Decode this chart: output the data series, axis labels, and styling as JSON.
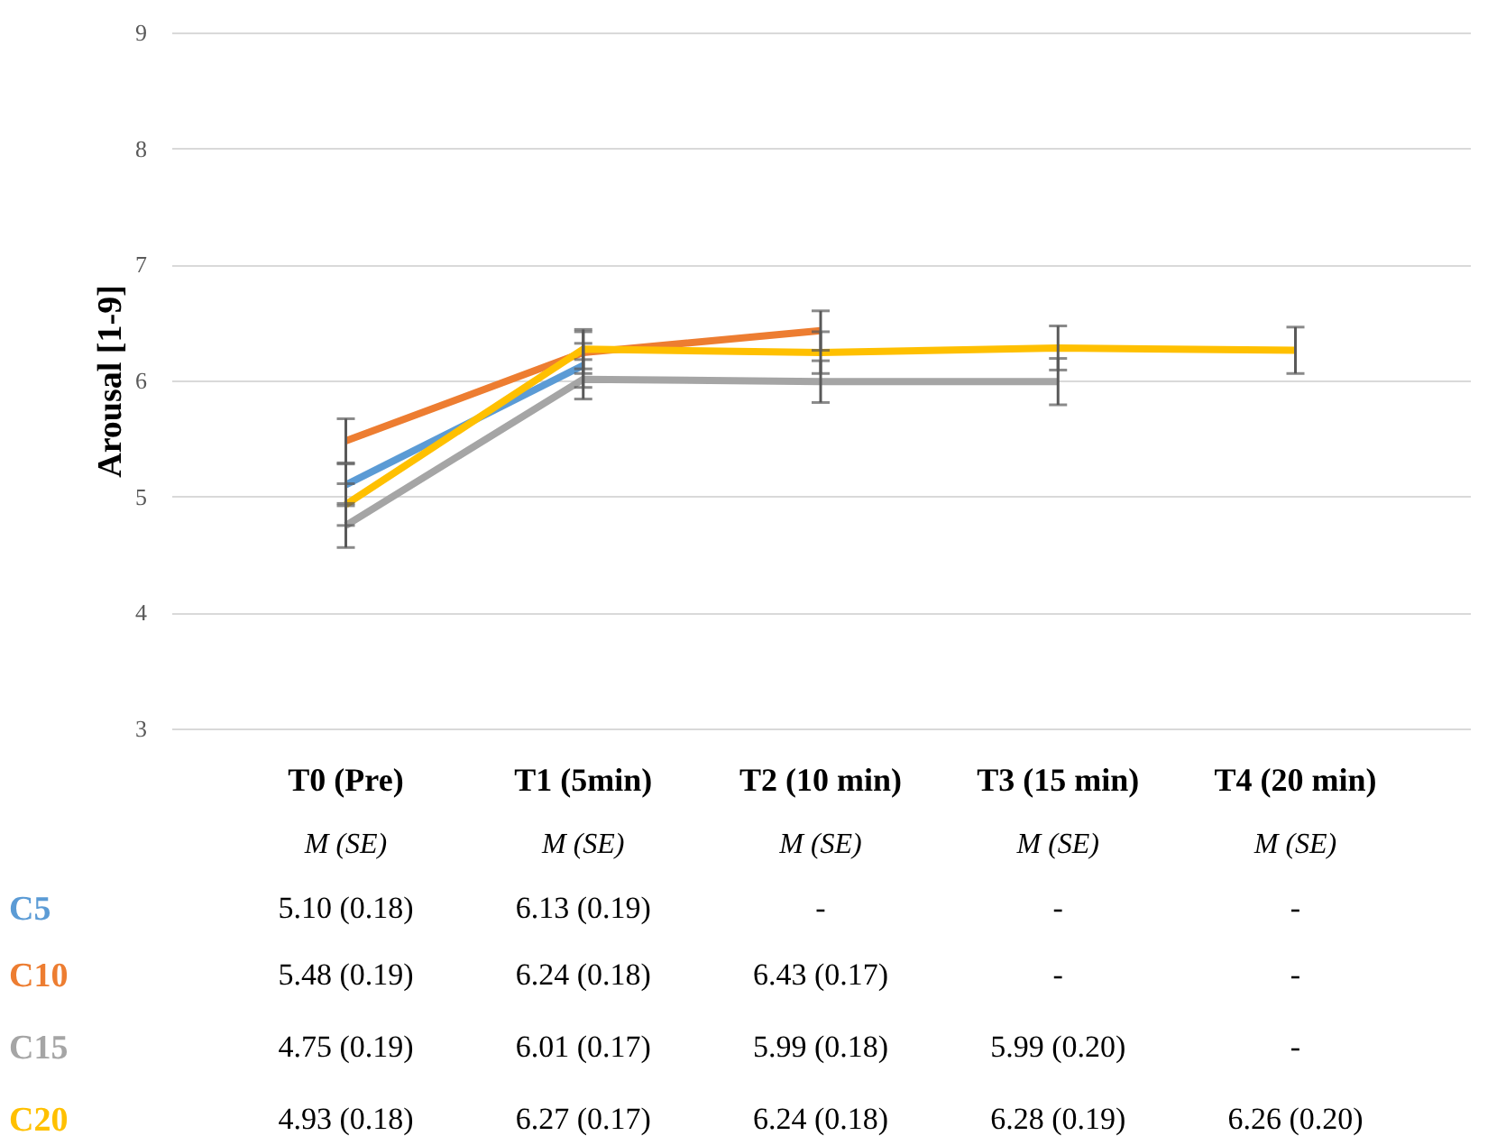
{
  "chart_data": {
    "type": "line",
    "ylabel": "Arousal [1-9]",
    "categories": [
      "T0 (Pre)",
      "T1 (5min)",
      "T2 (10 min)",
      "T3 (15 min)",
      "T4 (20 min)"
    ],
    "series": [
      {
        "name": "C5",
        "color": "#5b9bd5",
        "values": [
          5.1,
          6.13,
          null,
          null,
          null
        ],
        "errors": [
          0.18,
          0.19,
          null,
          null,
          null
        ],
        "value_labels": [
          "5.10 (0.18)",
          "6.13 (0.19)",
          "-",
          "-",
          "-"
        ]
      },
      {
        "name": "C10",
        "color": "#ed7d31",
        "values": [
          5.48,
          6.24,
          6.43,
          null,
          null
        ],
        "errors": [
          0.19,
          0.18,
          0.17,
          null,
          null
        ],
        "value_labels": [
          "5.48 (0.19)",
          "6.24 (0.18)",
          "6.43 (0.17)",
          "-",
          "-"
        ]
      },
      {
        "name": "C15",
        "color": "#a5a5a5",
        "values": [
          4.75,
          6.01,
          5.99,
          5.99,
          null
        ],
        "errors": [
          0.19,
          0.17,
          0.18,
          0.2,
          null
        ],
        "value_labels": [
          "4.75 (0.19)",
          "6.01 (0.17)",
          "5.99 (0.18)",
          "5.99 (0.20)",
          "-"
        ]
      },
      {
        "name": "C20",
        "color": "#ffc000",
        "values": [
          4.93,
          6.27,
          6.24,
          6.28,
          6.26
        ],
        "errors": [
          0.18,
          0.17,
          0.18,
          0.19,
          0.2
        ],
        "value_labels": [
          "4.93 (0.18)",
          "6.27 (0.17)",
          "6.24 (0.18)",
          "6.28 (0.19)",
          "6.26 (0.20)"
        ]
      }
    ],
    "ylim": [
      3,
      9
    ],
    "yticks": [
      3,
      4,
      5,
      6,
      7,
      8,
      9
    ],
    "grid": "y",
    "annotations": [
      "M (SE)"
    ]
  }
}
